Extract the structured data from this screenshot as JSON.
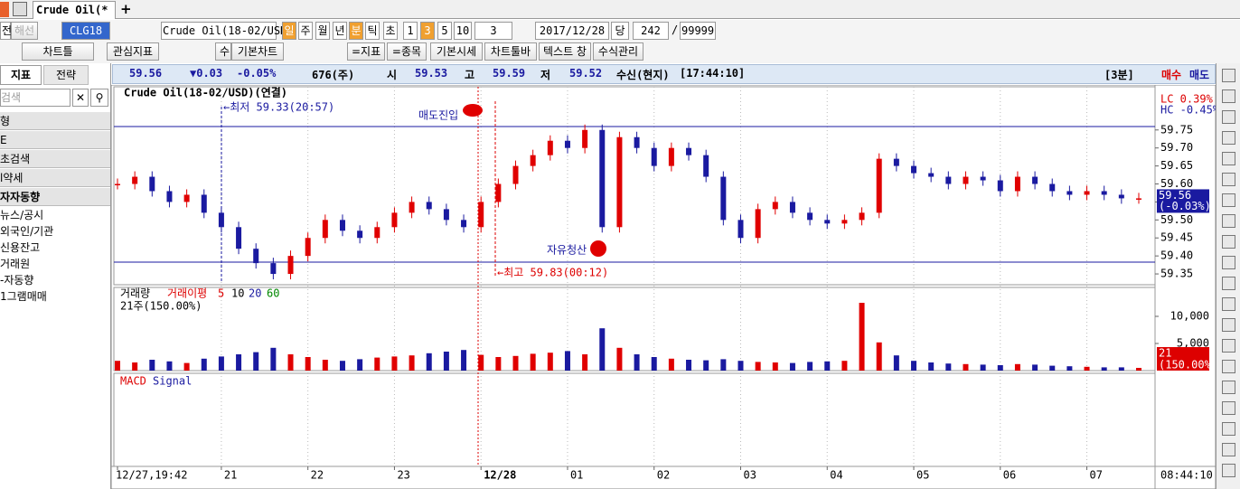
{
  "tabs": {
    "active": "Crude Oil(*",
    "add": "+"
  },
  "toolbar1": [
    "전",
    "해선",
    "CLG18",
    "Crude Oil(18-02/USD)",
    "일",
    "주",
    "월",
    "년",
    "분",
    "틱",
    "초",
    "1",
    "3",
    "5",
    "10",
    "3",
    "2017/12/28",
    "당",
    "242",
    "/",
    "99999"
  ],
  "toolbar2": [
    "차트틀",
    "관심지표",
    "수",
    "기본차트",
    "=지표",
    "=종목",
    "기본시세",
    "차트툴바",
    "텍스트 창",
    "수식관리"
  ],
  "left_panel": {
    "tabs": [
      "지표",
      "전략"
    ],
    "search": "검색",
    "items": [
      "형",
      "E",
      "초검색",
      "l약세",
      "자자동향",
      "뉴스/공시",
      "외국인/기관",
      "신용잔고",
      "거래원",
      "-자동향",
      "1그램매매"
    ]
  },
  "info_bar": {
    "last": "59.56",
    "change": "▼0.03",
    "rate": "-0.05%",
    "volume": "676(주)",
    "open_label": "시",
    "open": "59.53",
    "high_label": "고",
    "high": "59.59",
    "low_label": "저",
    "low": "59.52",
    "status": "수신(현지)",
    "time": "[17:44:10]",
    "period": "[3분]",
    "buy": "매수",
    "sell": "매도"
  },
  "chart_data": [
    {
      "type": "candlestick",
      "title": "Crude Oil(18-02/USD)(연결)",
      "values": [
        59.6,
        59.62,
        59.58,
        59.55,
        59.57,
        59.52,
        59.48,
        59.42,
        59.38,
        59.35,
        59.4,
        59.45,
        59.5,
        59.47,
        59.45,
        59.48,
        59.52,
        59.55,
        59.53,
        59.5,
        59.48,
        59.55,
        59.6,
        59.65,
        59.68,
        59.72,
        59.7,
        59.75,
        59.48,
        59.73,
        59.7,
        59.65,
        59.7,
        59.68,
        59.62,
        59.5,
        59.45,
        59.53,
        59.55,
        59.52,
        59.5,
        59.49,
        59.5,
        59.52,
        59.67,
        59.65,
        59.63,
        59.62,
        59.6,
        59.62,
        59.61,
        59.58,
        59.62,
        59.6,
        59.58,
        59.57,
        59.58,
        59.57,
        59.56,
        59.56
      ],
      "up_color": "#e00000",
      "down_color": "#1a1aa0",
      "ylim": [
        59.32,
        59.87
      ],
      "yticks": [
        59.35,
        {
          "value": 59.4,
          "label": "59.40"
        },
        59.45,
        {
          "value": 59.5,
          "label": "59.50"
        },
        59.55,
        {
          "value": 59.6,
          "label": "59.60"
        },
        59.65,
        {
          "value": 59.7,
          "label": "59.70"
        },
        59.75
      ],
      "xticks": [
        {
          "value": 0,
          "label": "12/27,19:42"
        },
        {
          "value": 6,
          "label": "21"
        },
        {
          "value": 11,
          "label": "22"
        },
        {
          "value": 16,
          "label": "23"
        },
        {
          "value": 21,
          "label": "12/28"
        },
        {
          "value": 26,
          "label": "01"
        },
        {
          "value": 31,
          "label": "02"
        },
        {
          "value": 36,
          "label": "03"
        },
        {
          "value": 41,
          "label": "04"
        },
        {
          "value": 46,
          "label": "05"
        },
        {
          "value": 51,
          "label": "06"
        },
        {
          "value": 56,
          "label": "07"
        }
      ],
      "time_label": "08:44:10",
      "annotations": [
        "←최저 59.33(20:57)",
        "←최고 59.83(00:12)",
        "매도진입",
        "자유청산"
      ],
      "side_labels": [
        "LC  0.39%",
        "HC -0.45%"
      ],
      "current": [
        "59.56",
        "(-0.03%)"
      ]
    },
    {
      "type": "bar",
      "legend": [
        "거래량",
        "거래이평",
        "5",
        "10",
        "20",
        "60"
      ],
      "subtitle": "21주(150.00%)",
      "values": [
        1800,
        1500,
        2000,
        1700,
        1400,
        2200,
        2600,
        3000,
        3400,
        4200,
        3000,
        2500,
        2000,
        1800,
        2100,
        2400,
        2600,
        2800,
        3200,
        3500,
        3800,
        2900,
        2500,
        2700,
        3100,
        3300,
        3600,
        3000,
        7800,
        4200,
        3000,
        2500,
        2200,
        2000,
        1900,
        2100,
        1800,
        1600,
        1500,
        1400,
        1600,
        1700,
        1800,
        12500,
        5200,
        2800,
        1800,
        1500,
        1300,
        1200,
        1100,
        1000,
        1200,
        1100,
        900,
        800,
        700,
        600,
        600,
        500
      ],
      "up_color": "#e00000",
      "down_color": "#1a1aa0",
      "ylim": [
        0,
        15000
      ],
      "yticks": [
        {
          "value": 5000,
          "label": "5,000"
        },
        {
          "value": 10000,
          "label": "10,000"
        }
      ],
      "current": [
        "21",
        "(150.00%)"
      ]
    },
    {
      "type": "macd",
      "legend": [
        "MACD",
        "Signal"
      ]
    }
  ]
}
